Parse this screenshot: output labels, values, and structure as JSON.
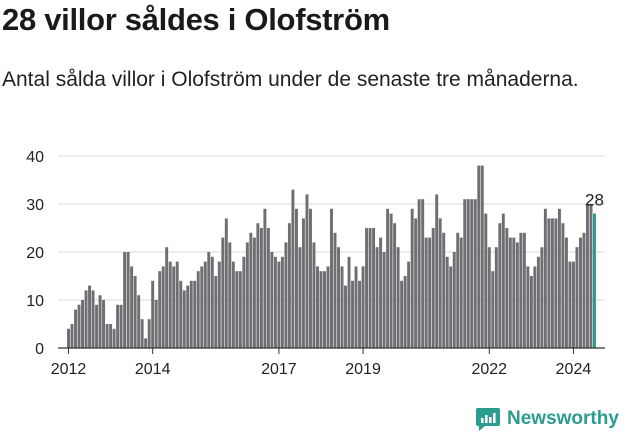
{
  "title": "28 villor såldes i Olofström",
  "subtitle": "Antal sålda villor i Olofström under de senaste tre månaderna.",
  "brand": {
    "name": "Newsworthy",
    "icon": "newsworthy-logo-icon"
  },
  "colors": {
    "bar": "#6f6f73",
    "highlight": "#2a9c90",
    "grid": "#d9d9d9",
    "axis": "#333333",
    "text": "#222222"
  },
  "chart_data": {
    "type": "bar",
    "title": "",
    "xlabel": "",
    "ylabel": "",
    "ylim": [
      0,
      40
    ],
    "yticks": [
      0,
      10,
      20,
      30,
      40
    ],
    "xlim": [
      2011.75,
      2024.75
    ],
    "xticks": [
      2012,
      2014,
      2017,
      2019,
      2022,
      2024
    ],
    "grid": true,
    "annotation": {
      "label": "28",
      "x": 2024.5,
      "y": 28
    },
    "bar_width": 0.07,
    "x": [
      2012.0,
      2012.083,
      2012.167,
      2012.25,
      2012.333,
      2012.417,
      2012.5,
      2012.583,
      2012.667,
      2012.75,
      2012.833,
      2012.917,
      2013.0,
      2013.083,
      2013.167,
      2013.25,
      2013.333,
      2013.417,
      2013.5,
      2013.583,
      2013.667,
      2013.75,
      2013.833,
      2013.917,
      2014.0,
      2014.083,
      2014.167,
      2014.25,
      2014.333,
      2014.417,
      2014.5,
      2014.583,
      2014.667,
      2014.75,
      2014.833,
      2014.917,
      2015.0,
      2015.083,
      2015.167,
      2015.25,
      2015.333,
      2015.417,
      2015.5,
      2015.583,
      2015.667,
      2015.75,
      2015.833,
      2015.917,
      2016.0,
      2016.083,
      2016.167,
      2016.25,
      2016.333,
      2016.417,
      2016.5,
      2016.583,
      2016.667,
      2016.75,
      2016.833,
      2016.917,
      2017.0,
      2017.083,
      2017.167,
      2017.25,
      2017.333,
      2017.417,
      2017.5,
      2017.583,
      2017.667,
      2017.75,
      2017.833,
      2017.917,
      2018.0,
      2018.083,
      2018.167,
      2018.25,
      2018.333,
      2018.417,
      2018.5,
      2018.583,
      2018.667,
      2018.75,
      2018.833,
      2018.917,
      2019.0,
      2019.083,
      2019.167,
      2019.25,
      2019.333,
      2019.417,
      2019.5,
      2019.583,
      2019.667,
      2019.75,
      2019.833,
      2019.917,
      2020.0,
      2020.083,
      2020.167,
      2020.25,
      2020.333,
      2020.417,
      2020.5,
      2020.583,
      2020.667,
      2020.75,
      2020.833,
      2020.917,
      2021.0,
      2021.083,
      2021.167,
      2021.25,
      2021.333,
      2021.417,
      2021.5,
      2021.583,
      2021.667,
      2021.75,
      2021.833,
      2021.917,
      2022.0,
      2022.083,
      2022.167,
      2022.25,
      2022.333,
      2022.417,
      2022.5,
      2022.583,
      2022.667,
      2022.75,
      2022.833,
      2022.917,
      2023.0,
      2023.083,
      2023.167,
      2023.25,
      2023.333,
      2023.417,
      2023.5,
      2023.583,
      2023.667,
      2023.75,
      2023.833,
      2023.917,
      2024.0,
      2024.083,
      2024.167,
      2024.25,
      2024.333,
      2024.417,
      2024.5
    ],
    "values": [
      4,
      5,
      8,
      9,
      10,
      12,
      13,
      12,
      9,
      11,
      10,
      5,
      5,
      4,
      9,
      9,
      20,
      20,
      17,
      15,
      11,
      6,
      2,
      6,
      14,
      10,
      16,
      17,
      21,
      18,
      17,
      18,
      14,
      12,
      13,
      14,
      14,
      16,
      17,
      18,
      20,
      19,
      15,
      18,
      23,
      27,
      22,
      18,
      16,
      16,
      19,
      22,
      24,
      23,
      26,
      25,
      29,
      25,
      20,
      19,
      18,
      19,
      22,
      26,
      33,
      29,
      21,
      27,
      32,
      29,
      22,
      17,
      16,
      16,
      17,
      29,
      24,
      21,
      17,
      13,
      19,
      14,
      17,
      14,
      17,
      25,
      25,
      25,
      21,
      23,
      20,
      29,
      28,
      26,
      21,
      14,
      15,
      18,
      29,
      27,
      31,
      31,
      23,
      23,
      25,
      32,
      27,
      24,
      19,
      17,
      20,
      24,
      23,
      31,
      31,
      31,
      31,
      38,
      38,
      28,
      21,
      16,
      21,
      26,
      28,
      25,
      23,
      23,
      22,
      24,
      24,
      17,
      15,
      17,
      19,
      21,
      29,
      27,
      27,
      27,
      29,
      26,
      23,
      18,
      18,
      21,
      23,
      24,
      30,
      30,
      28
    ],
    "highlight_index": 150
  }
}
